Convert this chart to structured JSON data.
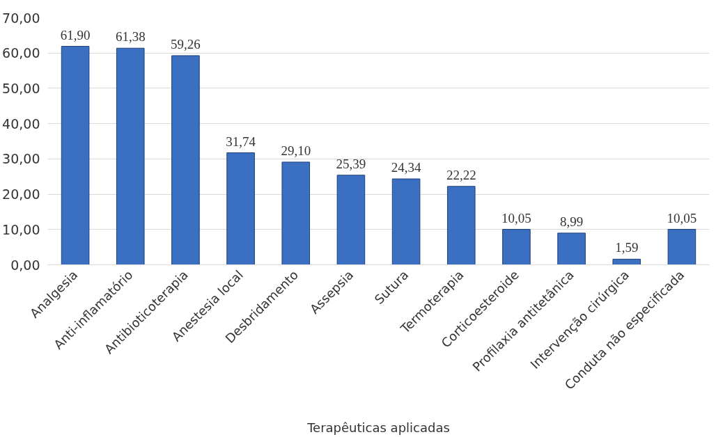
{
  "chart_data": {
    "type": "bar",
    "xlabel": "Terapêuticas aplicadas",
    "categories": [
      "Analgesia",
      "Anti-inflamatório",
      "Antibioticoterapia",
      "Anestesia local",
      "Desbridamento",
      "Assepsia",
      "Sutura",
      "Termoterapia",
      "Corticoesteroide",
      "Profilaxia antitetânica",
      "Intervenção cirúrgica",
      "Conduta não especificada"
    ],
    "values": [
      61.9,
      61.38,
      59.26,
      31.74,
      29.1,
      25.39,
      24.34,
      22.22,
      10.05,
      8.99,
      1.59,
      10.05
    ],
    "value_labels": [
      "61,90",
      "61,38",
      "59,26",
      "31,74",
      "29,10",
      "25,39",
      "24,34",
      "22,22",
      "10,05",
      "8,99",
      "1,59",
      "10,05"
    ],
    "color": "#3b6fc2",
    "ylim": [
      0,
      70
    ],
    "yticks": [
      {
        "value": 0,
        "label": "0,00"
      },
      {
        "value": 10,
        "label": "10,00"
      },
      {
        "value": 20,
        "label": "20,00"
      },
      {
        "value": 30,
        "label": "30,00"
      },
      {
        "value": 40,
        "label": "40,00"
      },
      {
        "value": 50,
        "label": "50,00"
      },
      {
        "value": 60,
        "label": "60,00"
      },
      {
        "value": 70,
        "label": "70,00"
      }
    ],
    "grid": "y"
  }
}
